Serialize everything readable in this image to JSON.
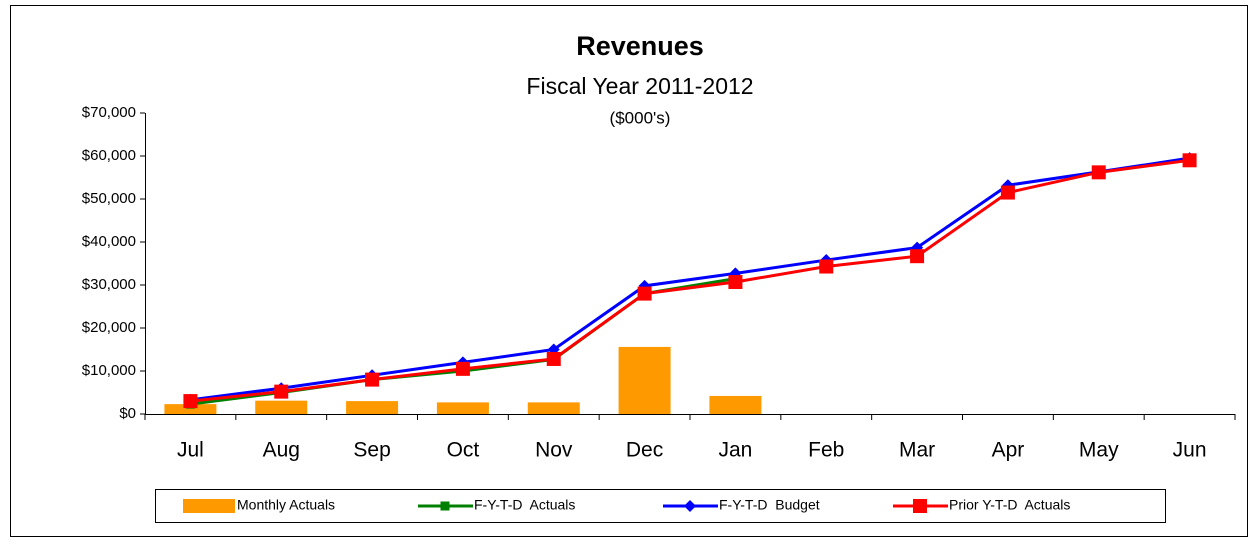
{
  "chart_data": {
    "type": "combo",
    "title": "Revenues",
    "subtitle": "Fiscal Year 2011-2012",
    "unit_note": "($000's)",
    "categories": [
      "Jul",
      "Aug",
      "Sep",
      "Oct",
      "Nov",
      "Dec",
      "Jan",
      "Feb",
      "Mar",
      "Apr",
      "May",
      "Jun"
    ],
    "series": [
      {
        "name": "Monthly Actuals",
        "type": "bar",
        "color": "#ff9900",
        "values": [
          2300,
          3100,
          3000,
          2700,
          2700,
          15600,
          4200,
          null,
          null,
          null,
          null,
          null
        ]
      },
      {
        "name": "F-Y-T-D  Actuals",
        "type": "line",
        "marker": "square-small",
        "color": "#008000",
        "values": [
          2300,
          5000,
          8000,
          10000,
          12700,
          28000,
          31500,
          null,
          null,
          null,
          null,
          null
        ]
      },
      {
        "name": "F-Y-T-D  Budget",
        "type": "line",
        "marker": "diamond",
        "color": "#0000ff",
        "values": [
          3300,
          6000,
          9000,
          12000,
          15000,
          29800,
          32700,
          35800,
          38700,
          53200,
          56300,
          59500
        ]
      },
      {
        "name": "Prior Y-T-D  Actuals",
        "type": "line",
        "marker": "square",
        "color": "#ff0000",
        "values": [
          3000,
          5200,
          8000,
          10500,
          12800,
          28000,
          30700,
          34300,
          36700,
          51500,
          56200,
          59000
        ]
      }
    ],
    "ylim": [
      0,
      70000
    ],
    "yticks": [
      {
        "value": 0,
        "label": "$0"
      },
      {
        "value": 10000,
        "label": "$10,000"
      },
      {
        "value": 20000,
        "label": "$20,000"
      },
      {
        "value": 30000,
        "label": "$30,000"
      },
      {
        "value": 40000,
        "label": "$40,000"
      },
      {
        "value": 50000,
        "label": "$50,000"
      },
      {
        "value": 60000,
        "label": "$60,000"
      },
      {
        "value": 70000,
        "label": "$70,000"
      }
    ],
    "grid": false,
    "legend": "bottom"
  }
}
